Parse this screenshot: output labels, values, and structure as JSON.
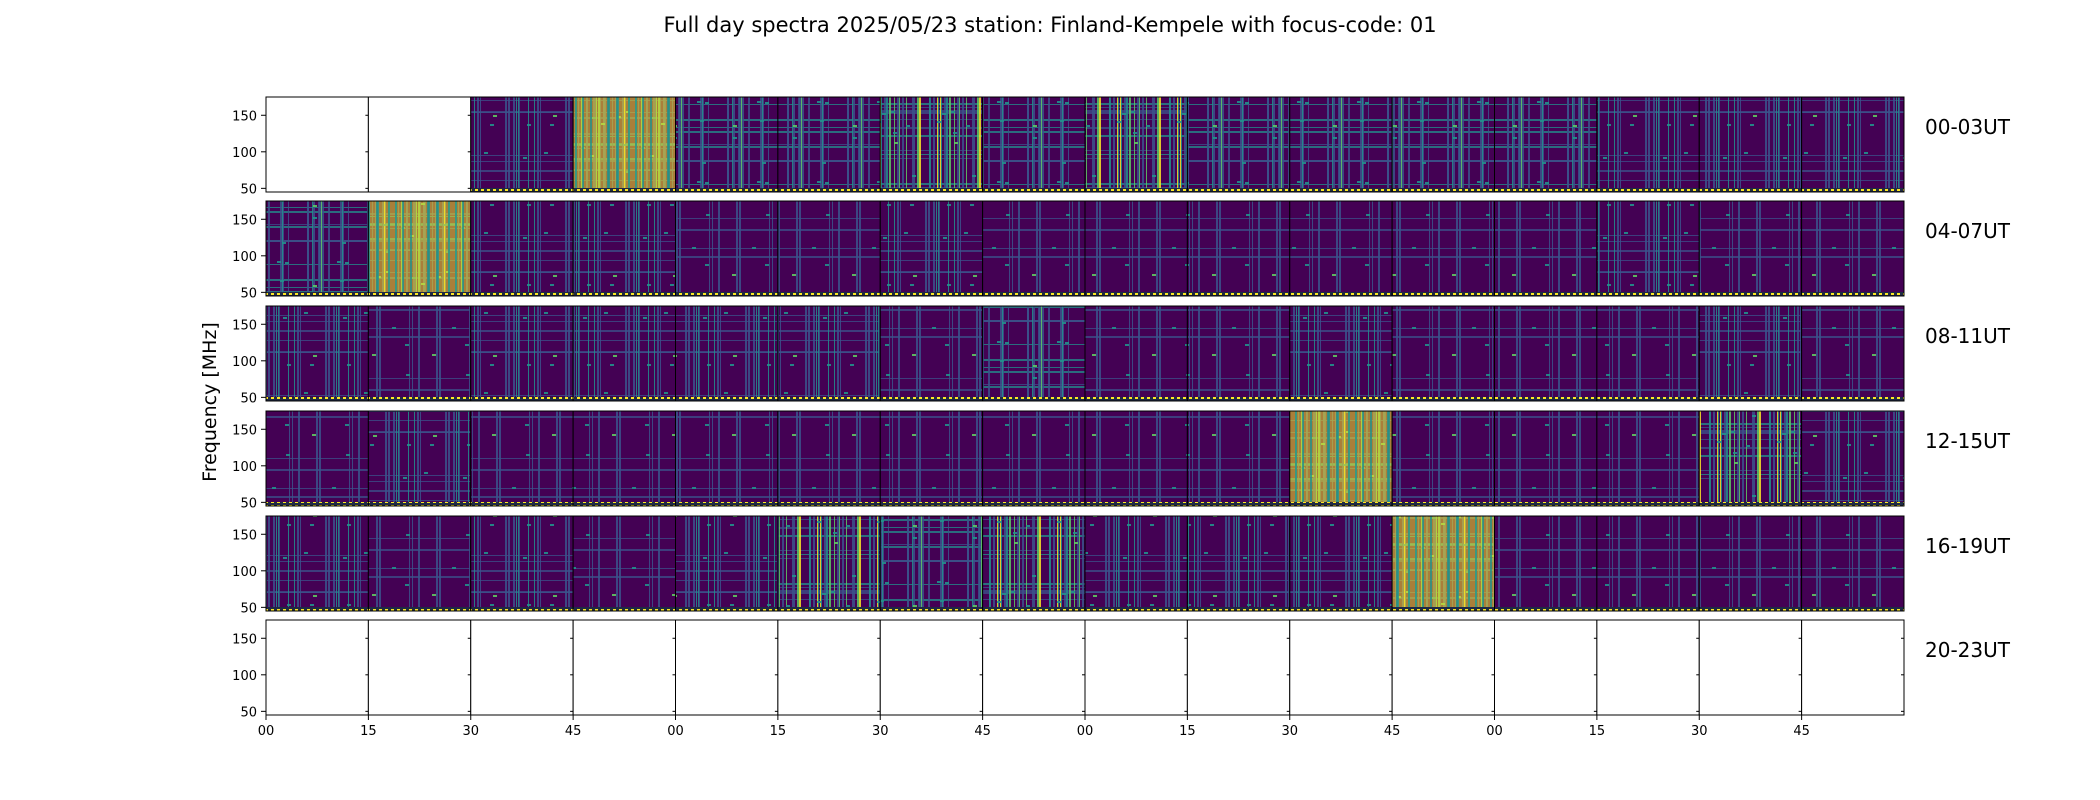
{
  "chart_data": {
    "type": "heatmap",
    "title": "Full day spectra 2025/05/23 station: Finland-Kempele with focus-code: 01",
    "xlabel": "",
    "ylabel": "Frequency [MHz]",
    "ylim": [
      45,
      175
    ],
    "y_ticks": [
      50,
      100,
      150
    ],
    "x_tick_labels": [
      "00",
      "15",
      "30",
      "45",
      "00",
      "15",
      "30",
      "45",
      "00",
      "15",
      "30",
      "45",
      "00",
      "15",
      "30",
      "45"
    ],
    "colormap": [
      "#440154",
      "#3b528b",
      "#21918c",
      "#5ec962",
      "#fde725"
    ],
    "rows": [
      {
        "label": "00-03UT",
        "cells": [
          -1,
          -1,
          2,
          5,
          3,
          3,
          4,
          3,
          4,
          3,
          3,
          3,
          3,
          2,
          2,
          2
        ]
      },
      {
        "label": "04-07UT",
        "cells": [
          3,
          5,
          2,
          2,
          1,
          1,
          2,
          1,
          1,
          1,
          1,
          1,
          1,
          2,
          1,
          1
        ]
      },
      {
        "label": "08-11UT",
        "cells": [
          2,
          1,
          2,
          2,
          2,
          2,
          1,
          3,
          1,
          1,
          2,
          1,
          1,
          1,
          2,
          1
        ]
      },
      {
        "label": "12-15UT",
        "cells": [
          1,
          2,
          1,
          1,
          1,
          1,
          1,
          1,
          1,
          1,
          5,
          1,
          1,
          1,
          4,
          2
        ]
      },
      {
        "label": "16-19UT",
        "cells": [
          2,
          1,
          2,
          1,
          2,
          4,
          3,
          4,
          2,
          2,
          2,
          5,
          1,
          1,
          1,
          1
        ]
      },
      {
        "label": "20-23UT",
        "cells": [
          -1,
          -1,
          -1,
          -1,
          -1,
          -1,
          -1,
          -1,
          -1,
          -1,
          -1,
          -1,
          -1,
          -1,
          -1,
          -1
        ]
      }
    ]
  }
}
